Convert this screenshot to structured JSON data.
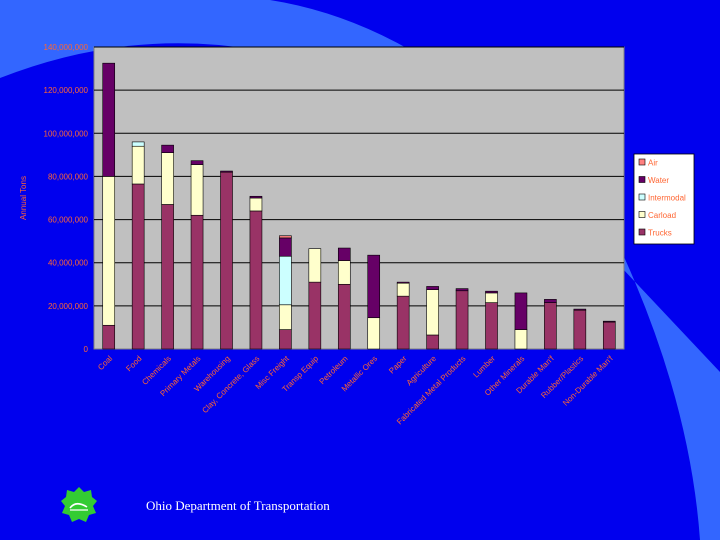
{
  "footer": {
    "organization": "Ohio Department of Transportation"
  },
  "colors": {
    "background": "#0000ee",
    "plot_area": "#c0c0c0",
    "Trucks": "#993366",
    "Carload": "#ffffcc",
    "Intermodal": "#ccffff",
    "Water": "#660066",
    "Air": "#ff8080",
    "axis_text": "#ff6633",
    "logo": "#33cc33"
  },
  "chart_data": {
    "type": "bar",
    "stacked": true,
    "title": "",
    "xlabel": "",
    "ylabel": "Annual Tons",
    "ylim": [
      0,
      140000000
    ],
    "yticks": [
      "0",
      "20,000,000",
      "40,000,000",
      "60,000,000",
      "80,000,000",
      "100,000,000",
      "120,000,000",
      "140,000,000"
    ],
    "grid": true,
    "legend_position": "right",
    "legend_order": [
      "Air",
      "Water",
      "Intermodal",
      "Carload",
      "Trucks"
    ],
    "categories": [
      "Coal",
      "Food",
      "Chemicals",
      "Primary Metals",
      "Warehousing",
      "Clay, Concrete, Glass",
      "Misc Freight",
      "Transp Equip",
      "Petroleum",
      "Metallic Ores",
      "Paper",
      "Agriculture",
      "Fabricated Metal Products",
      "Lumber",
      "Other Minerals",
      "Durable Man'f",
      "Rubber/Plastics",
      "Non-Durable Man'f"
    ],
    "series": [
      {
        "name": "Trucks",
        "values": [
          11000000,
          76500000,
          67000000,
          62000000,
          82000000,
          64000000,
          9000000,
          31000000,
          30000000,
          0,
          24500000,
          6500000,
          27000000,
          21500000,
          0,
          21500000,
          18000000,
          12500000
        ]
      },
      {
        "name": "Carload",
        "values": [
          69000000,
          17500000,
          24000000,
          23500000,
          0,
          6000000,
          11500000,
          15500000,
          11000000,
          14500000,
          6000000,
          21000000,
          0,
          4500000,
          9000000,
          0,
          0,
          0
        ]
      },
      {
        "name": "Intermodal",
        "values": [
          0,
          2000000,
          0,
          0,
          0,
          0,
          22500000,
          0,
          0,
          0,
          0,
          0,
          0,
          0,
          0,
          0,
          0,
          0
        ]
      },
      {
        "name": "Water",
        "values": [
          52500000,
          0,
          3500000,
          1800000,
          500000,
          800000,
          8500000,
          0,
          5800000,
          29000000,
          500000,
          1500000,
          1000000,
          800000,
          17000000,
          1500000,
          500000,
          400000
        ]
      },
      {
        "name": "Air",
        "values": [
          0,
          0,
          0,
          0,
          0,
          0,
          1000000,
          0,
          0,
          0,
          0,
          0,
          0,
          0,
          0,
          0,
          0,
          0
        ]
      }
    ]
  }
}
